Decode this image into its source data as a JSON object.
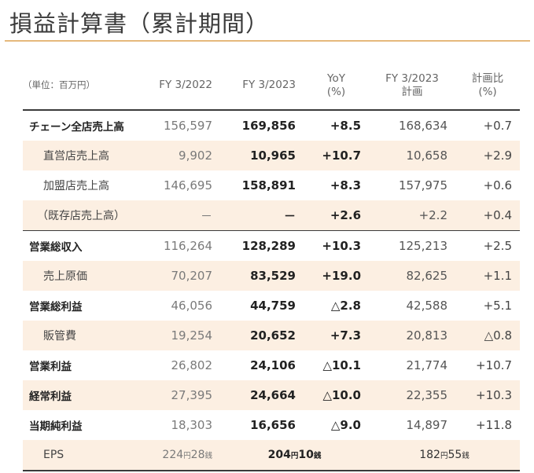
{
  "title": "損益計算書（累計期間）",
  "header": {
    "unit": "（単位：百万円）",
    "prev": "FY 3/2022",
    "cur": "FY 3/2023",
    "yoy_line1": "YoY",
    "yoy_line2": "(%)",
    "plan_line1": "FY 3/2023",
    "plan_line2": "計画",
    "ratio_line1": "計画比",
    "ratio_line2": "(%)"
  },
  "rows": [
    {
      "label": "チェーン全店売上高",
      "prev": "156,597",
      "cur": "169,856",
      "yoy": "+8.5",
      "plan": "168,634",
      "ratio": "+0.7"
    },
    {
      "label": "直営店売上高",
      "prev": "9,902",
      "cur": "10,965",
      "yoy": "+10.7",
      "plan": "10,658",
      "ratio": "+2.9"
    },
    {
      "label": "加盟店売上高",
      "prev": "146,695",
      "cur": "158,891",
      "yoy": "+8.3",
      "plan": "157,975",
      "ratio": "+0.6"
    },
    {
      "label": "（既存店売上高）",
      "prev": "－",
      "cur": "－",
      "yoy": "+2.6",
      "plan": "+2.2",
      "ratio": "+0.4"
    },
    {
      "label": "営業総収入",
      "prev": "116,264",
      "cur": "128,289",
      "yoy": "+10.3",
      "plan": "125,213",
      "ratio": "+2.5"
    },
    {
      "label": "売上原価",
      "prev": "70,207",
      "cur": "83,529",
      "yoy": "+19.0",
      "plan": "82,625",
      "ratio": "+1.1"
    },
    {
      "label": "営業総利益",
      "prev": "46,056",
      "cur": "44,759",
      "yoy": "△2.8",
      "plan": "42,588",
      "ratio": "+5.1"
    },
    {
      "label": "販管費",
      "prev": "19,254",
      "cur": "20,652",
      "yoy": "+7.3",
      "plan": "20,813",
      "ratio": "△0.8"
    },
    {
      "label": "営業利益",
      "prev": "26,802",
      "cur": "24,106",
      "yoy": "△10.1",
      "plan": "21,774",
      "ratio": "+10.7"
    },
    {
      "label": "経常利益",
      "prev": "27,395",
      "cur": "24,664",
      "yoy": "△10.0",
      "plan": "22,355",
      "ratio": "+10.3"
    },
    {
      "label": "当期純利益",
      "prev": "18,303",
      "cur": "16,656",
      "yoy": "△9.0",
      "plan": "14,897",
      "ratio": "+11.8"
    }
  ],
  "eps": {
    "label": "EPS",
    "prev_yen": "224",
    "prev_sen": "28",
    "cur_yen": "204",
    "cur_sen": "10",
    "plan_yen": "182",
    "plan_sen": "55",
    "yen_unit": "円",
    "sen_unit": "銭"
  }
}
